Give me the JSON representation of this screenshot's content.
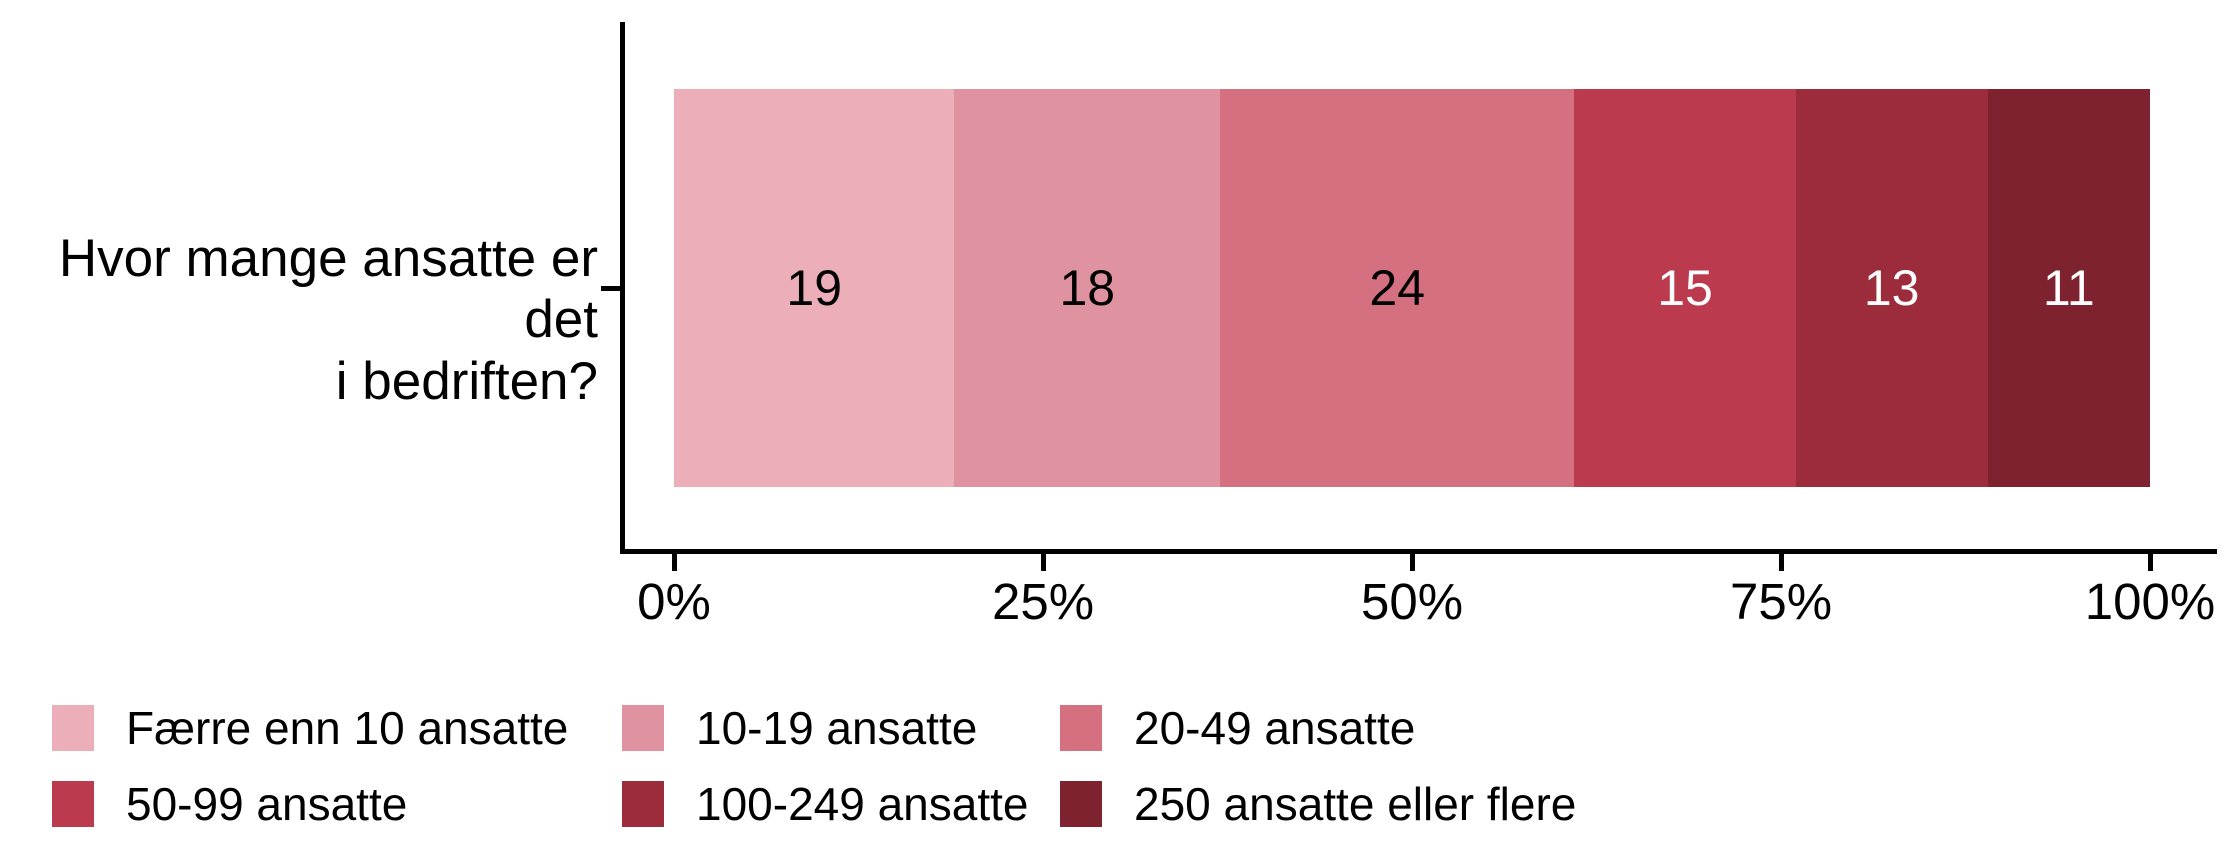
{
  "chart_data": {
    "type": "bar",
    "variant": "horizontal-stacked-percent",
    "question": {
      "label": "Hvor mange ansatte er det i bedriften?",
      "lines": [
        "Hvor mange ansatte er det",
        "i bedriften?"
      ]
    },
    "categories": [
      "Færre enn 10 ansatte",
      "10-19 ansatte",
      "20-49 ansatte",
      "50-99 ansatte",
      "100-249 ansatte",
      "250 ansatte eller flere"
    ],
    "values": [
      19,
      18,
      24,
      15,
      13,
      11
    ],
    "segment_colors": [
      "#ECAFB9",
      "#DF92A0",
      "#D4707F",
      "#BC3A4E",
      "#9C2C3C",
      "#7E222F"
    ],
    "value_label_colors": [
      "#000000",
      "#000000",
      "#000000",
      "#FFFFFF",
      "#FFFFFF",
      "#FFFFFF"
    ],
    "x_axis": {
      "tick_labels": [
        "0%",
        "25%",
        "50%",
        "75%",
        "100%"
      ],
      "tick_values": [
        0,
        25,
        50,
        75,
        100
      ],
      "range": [
        0,
        100
      ]
    },
    "axis_color": "#000000",
    "background_color": "#FFFFFF",
    "legend_position": "bottom-left",
    "grid": false
  }
}
